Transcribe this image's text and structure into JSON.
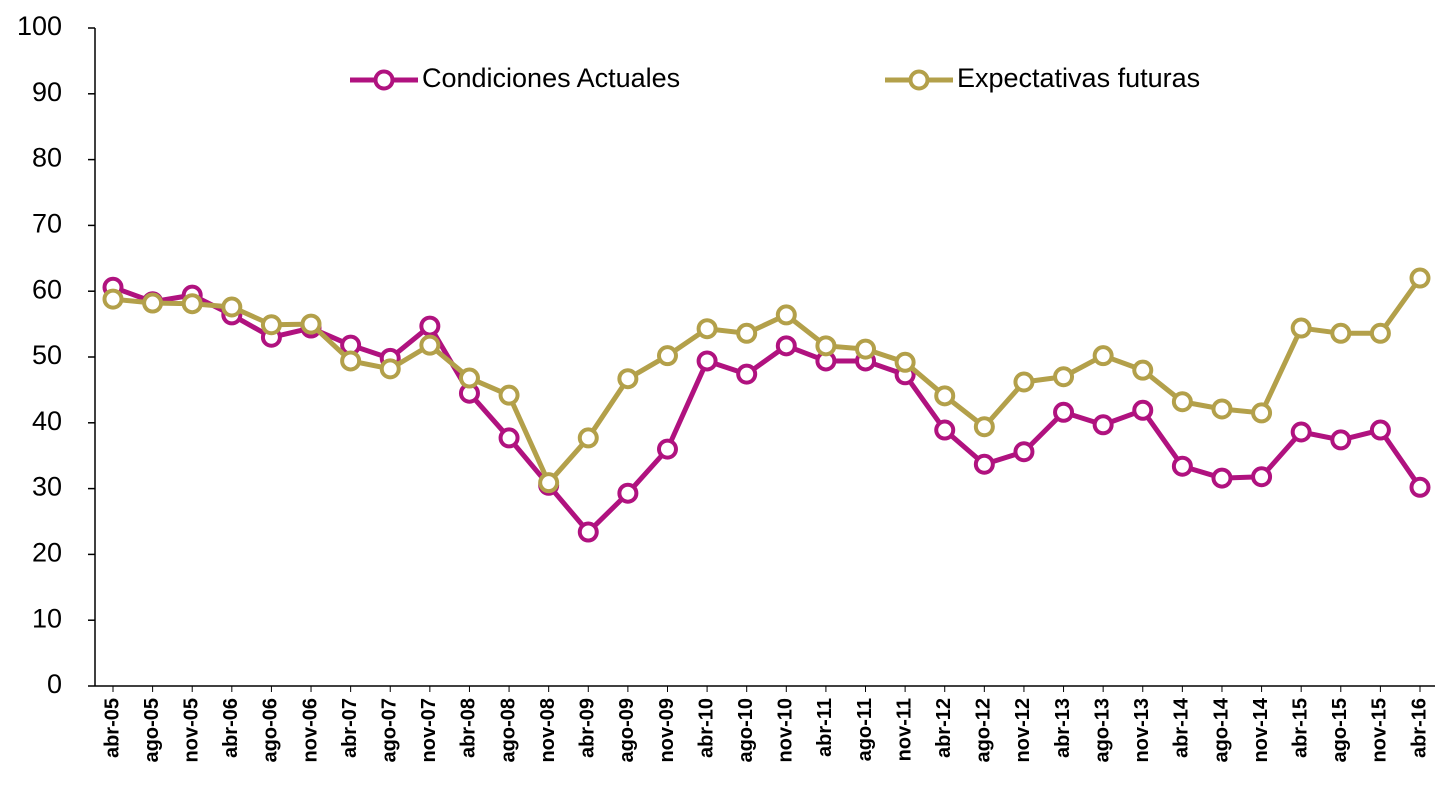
{
  "chart_data": {
    "type": "line",
    "categories": [
      "abr-05",
      "ago-05",
      "nov-05",
      "abr-06",
      "ago-06",
      "nov-06",
      "abr-07",
      "ago-07",
      "nov-07",
      "abr-08",
      "ago-08",
      "nov-08",
      "abr-09",
      "ago-09",
      "nov-09",
      "abr-10",
      "ago-10",
      "nov-10",
      "abr-11",
      "ago-11",
      "nov-11",
      "abr-12",
      "ago-12",
      "nov-12",
      "abr-13",
      "ago-13",
      "nov-13",
      "abr-14",
      "ago-14",
      "nov-14",
      "abr-15",
      "ago-15",
      "nov-15",
      "abr-16"
    ],
    "series": [
      {
        "name": "Condiciones Actuales",
        "color": "#b0127f",
        "values": [
          60.6,
          58.4,
          59.4,
          56.4,
          53.0,
          54.4,
          51.8,
          49.8,
          54.7,
          44.5,
          37.7,
          30.5,
          23.4,
          29.3,
          36.0,
          49.4,
          47.4,
          51.7,
          49.4,
          49.4,
          47.3,
          38.9,
          33.7,
          35.6,
          41.6,
          39.7,
          41.9,
          33.4,
          31.6,
          31.8,
          38.6,
          37.4,
          38.9,
          30.2
        ]
      },
      {
        "name": "Expectativas futuras",
        "color": "#b3a04a",
        "values": [
          58.8,
          58.2,
          58.1,
          57.6,
          54.9,
          55.0,
          49.4,
          48.2,
          51.8,
          46.8,
          44.2,
          30.9,
          37.7,
          46.7,
          50.2,
          54.3,
          53.6,
          56.4,
          51.7,
          51.2,
          49.2,
          44.1,
          39.4,
          46.2,
          47.0,
          50.2,
          48.0,
          43.2,
          42.1,
          41.5,
          54.4,
          53.6,
          53.6,
          62.0
        ]
      }
    ],
    "ylim": [
      0,
      100
    ],
    "yticks": [
      0,
      10,
      20,
      30,
      40,
      50,
      60,
      70,
      80,
      90,
      100
    ],
    "grid": false,
    "legend": "top"
  }
}
